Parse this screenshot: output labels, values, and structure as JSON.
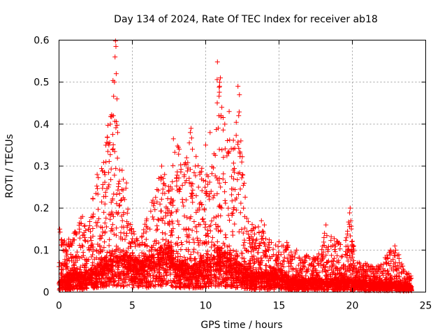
{
  "chart_data": {
    "type": "scatter",
    "title": "Day 134 of 2024, Rate Of TEC Index for receiver ab18",
    "xlabel": "GPS time / hours",
    "ylabel": "ROTI / TECUs",
    "xlim": [
      0,
      25
    ],
    "ylim": [
      0,
      0.6
    ],
    "xticks": [
      "0",
      "5",
      "10",
      "15",
      "20",
      "25"
    ],
    "yticks": [
      "0",
      "0.1",
      "0.2",
      "0.3",
      "0.4",
      "0.5",
      "0.6"
    ],
    "grid": true,
    "marker": "+",
    "color": "#ff0000",
    "envelope": {
      "x": [
        0,
        0.5,
        1.0,
        1.5,
        2.0,
        2.5,
        3.0,
        3.3,
        3.6,
        3.8,
        4.0,
        4.3,
        4.6,
        5.0,
        5.5,
        6.0,
        6.5,
        7.0,
        7.5,
        8.0,
        8.5,
        9.0,
        9.5,
        10.0,
        10.5,
        10.8,
        11.0,
        11.3,
        11.6,
        12.0,
        12.3,
        12.6,
        13.0,
        13.5,
        14.0,
        14.5,
        15.0,
        15.5,
        16.0,
        16.5,
        17.0,
        17.5,
        18.0,
        18.5,
        19.0,
        19.5,
        19.8,
        20.2,
        20.5,
        21.0,
        21.5,
        22.0,
        22.5,
        23.0,
        23.5,
        24.0
      ],
      "y": [
        0.15,
        0.12,
        0.14,
        0.18,
        0.15,
        0.27,
        0.3,
        0.4,
        0.45,
        0.59,
        0.38,
        0.29,
        0.25,
        0.15,
        0.12,
        0.18,
        0.25,
        0.3,
        0.25,
        0.36,
        0.32,
        0.39,
        0.3,
        0.29,
        0.35,
        0.55,
        0.51,
        0.44,
        0.4,
        0.42,
        0.49,
        0.28,
        0.17,
        0.16,
        0.17,
        0.12,
        0.11,
        0.12,
        0.1,
        0.08,
        0.09,
        0.08,
        0.13,
        0.16,
        0.12,
        0.11,
        0.2,
        0.08,
        0.07,
        0.07,
        0.06,
        0.07,
        0.1,
        0.11,
        0.06,
        0.04
      ]
    },
    "baseline": {
      "x": [
        0,
        1,
        2,
        3,
        3.5,
        4,
        4.5,
        5,
        6,
        7,
        7.5,
        8,
        9,
        10,
        11,
        12,
        13,
        14,
        15,
        16,
        17,
        18,
        19,
        20,
        21,
        22,
        23,
        24
      ],
      "y": [
        0.02,
        0.03,
        0.03,
        0.05,
        0.06,
        0.07,
        0.06,
        0.05,
        0.05,
        0.07,
        0.08,
        0.05,
        0.04,
        0.05,
        0.07,
        0.05,
        0.03,
        0.03,
        0.03,
        0.02,
        0.02,
        0.02,
        0.02,
        0.02,
        0.015,
        0.015,
        0.015,
        0.01
      ]
    },
    "highlights": [
      {
        "x": 3.85,
        "y": 0.598
      },
      {
        "x": 3.88,
        "y": 0.585
      },
      {
        "x": 3.82,
        "y": 0.56
      },
      {
        "x": 3.9,
        "y": 0.52
      },
      {
        "x": 3.78,
        "y": 0.5
      },
      {
        "x": 3.95,
        "y": 0.46
      },
      {
        "x": 3.7,
        "y": 0.42
      },
      {
        "x": 3.5,
        "y": 0.4
      },
      {
        "x": 3.4,
        "y": 0.35
      },
      {
        "x": 4.0,
        "y": 0.38
      },
      {
        "x": 4.3,
        "y": 0.29
      },
      {
        "x": 4.6,
        "y": 0.26
      },
      {
        "x": 2.6,
        "y": 0.28
      },
      {
        "x": 3.2,
        "y": 0.31
      },
      {
        "x": 7.0,
        "y": 0.3
      },
      {
        "x": 7.2,
        "y": 0.28
      },
      {
        "x": 7.8,
        "y": 0.365
      },
      {
        "x": 8.2,
        "y": 0.34
      },
      {
        "x": 8.7,
        "y": 0.32
      },
      {
        "x": 9.0,
        "y": 0.39
      },
      {
        "x": 8.95,
        "y": 0.38
      },
      {
        "x": 9.3,
        "y": 0.3
      },
      {
        "x": 9.6,
        "y": 0.28
      },
      {
        "x": 10.0,
        "y": 0.35
      },
      {
        "x": 10.3,
        "y": 0.38
      },
      {
        "x": 10.8,
        "y": 0.548
      },
      {
        "x": 11.0,
        "y": 0.51
      },
      {
        "x": 10.95,
        "y": 0.49
      },
      {
        "x": 11.1,
        "y": 0.44
      },
      {
        "x": 10.9,
        "y": 0.42
      },
      {
        "x": 11.3,
        "y": 0.4
      },
      {
        "x": 11.6,
        "y": 0.43
      },
      {
        "x": 12.2,
        "y": 0.49
      },
      {
        "x": 12.3,
        "y": 0.47
      },
      {
        "x": 12.25,
        "y": 0.42
      },
      {
        "x": 12.4,
        "y": 0.36
      },
      {
        "x": 12.35,
        "y": 0.33
      },
      {
        "x": 12.5,
        "y": 0.28
      },
      {
        "x": 13.8,
        "y": 0.17
      },
      {
        "x": 14.0,
        "y": 0.16
      },
      {
        "x": 15.0,
        "y": 0.12
      },
      {
        "x": 15.2,
        "y": 0.11
      },
      {
        "x": 16.2,
        "y": 0.1
      },
      {
        "x": 18.2,
        "y": 0.16
      },
      {
        "x": 18.1,
        "y": 0.14
      },
      {
        "x": 19.0,
        "y": 0.12
      },
      {
        "x": 19.85,
        "y": 0.2
      },
      {
        "x": 19.9,
        "y": 0.17
      },
      {
        "x": 19.7,
        "y": 0.1
      },
      {
        "x": 22.6,
        "y": 0.1
      },
      {
        "x": 22.9,
        "y": 0.11
      },
      {
        "x": 23.2,
        "y": 0.07
      },
      {
        "x": 0.05,
        "y": 0.15
      },
      {
        "x": 1.2,
        "y": 0.14
      },
      {
        "x": 1.6,
        "y": 0.18
      },
      {
        "x": 2.0,
        "y": 0.15
      }
    ]
  }
}
